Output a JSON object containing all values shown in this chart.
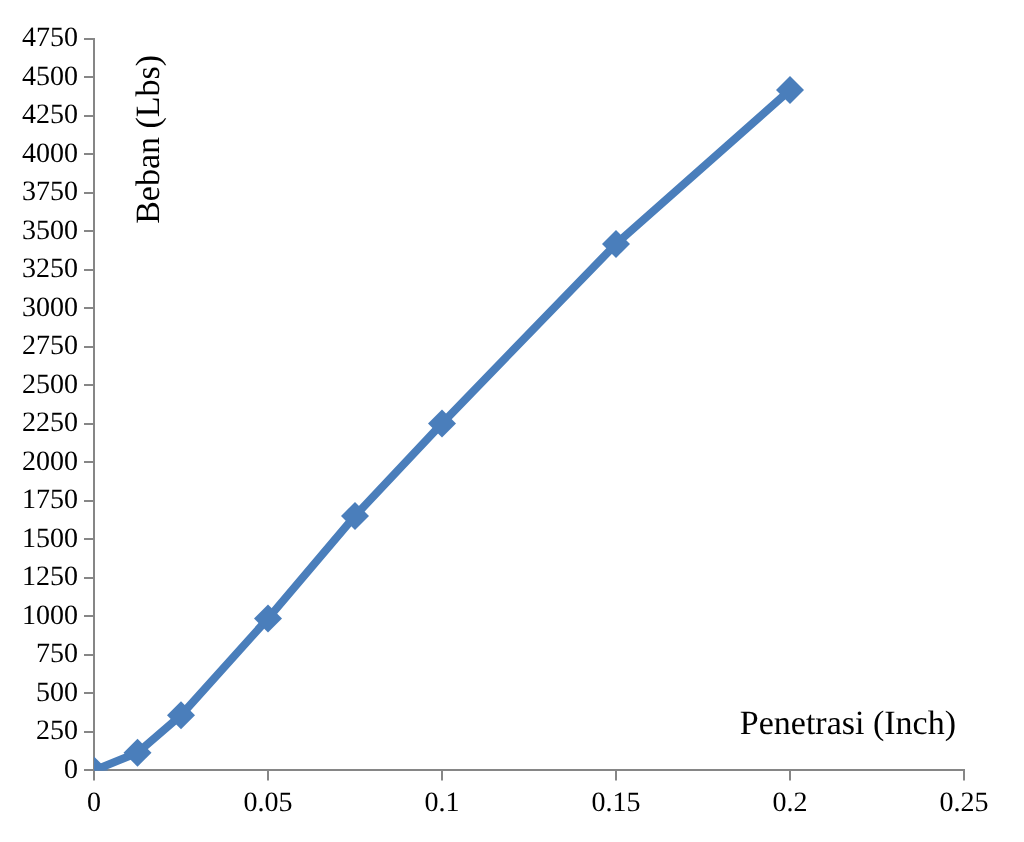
{
  "chart_data": {
    "type": "line",
    "xlabel": "Penetrasi (Inch)",
    "ylabel": "Beban (Lbs)",
    "x": [
      0,
      0.0125,
      0.025,
      0.05,
      0.075,
      0.1,
      0.15,
      0.2
    ],
    "series": [
      {
        "color": "#4a7ebb",
        "values": [
          0,
          115,
          358,
          986,
          1652,
          2253,
          3418,
          4417
        ]
      }
    ],
    "xlim": [
      0,
      0.25
    ],
    "xticks": [
      0,
      0.05,
      0.1,
      0.15,
      0.2,
      0.25
    ],
    "ylim": [
      0,
      4750
    ],
    "yticks": [
      0,
      250,
      500,
      750,
      1000,
      1250,
      1500,
      1750,
      2000,
      2250,
      2500,
      2750,
      3000,
      3250,
      3500,
      3750,
      4000,
      4250,
      4500,
      4750
    ],
    "grid": false,
    "legend": false,
    "marker": "diamond",
    "line_style": "solid"
  }
}
